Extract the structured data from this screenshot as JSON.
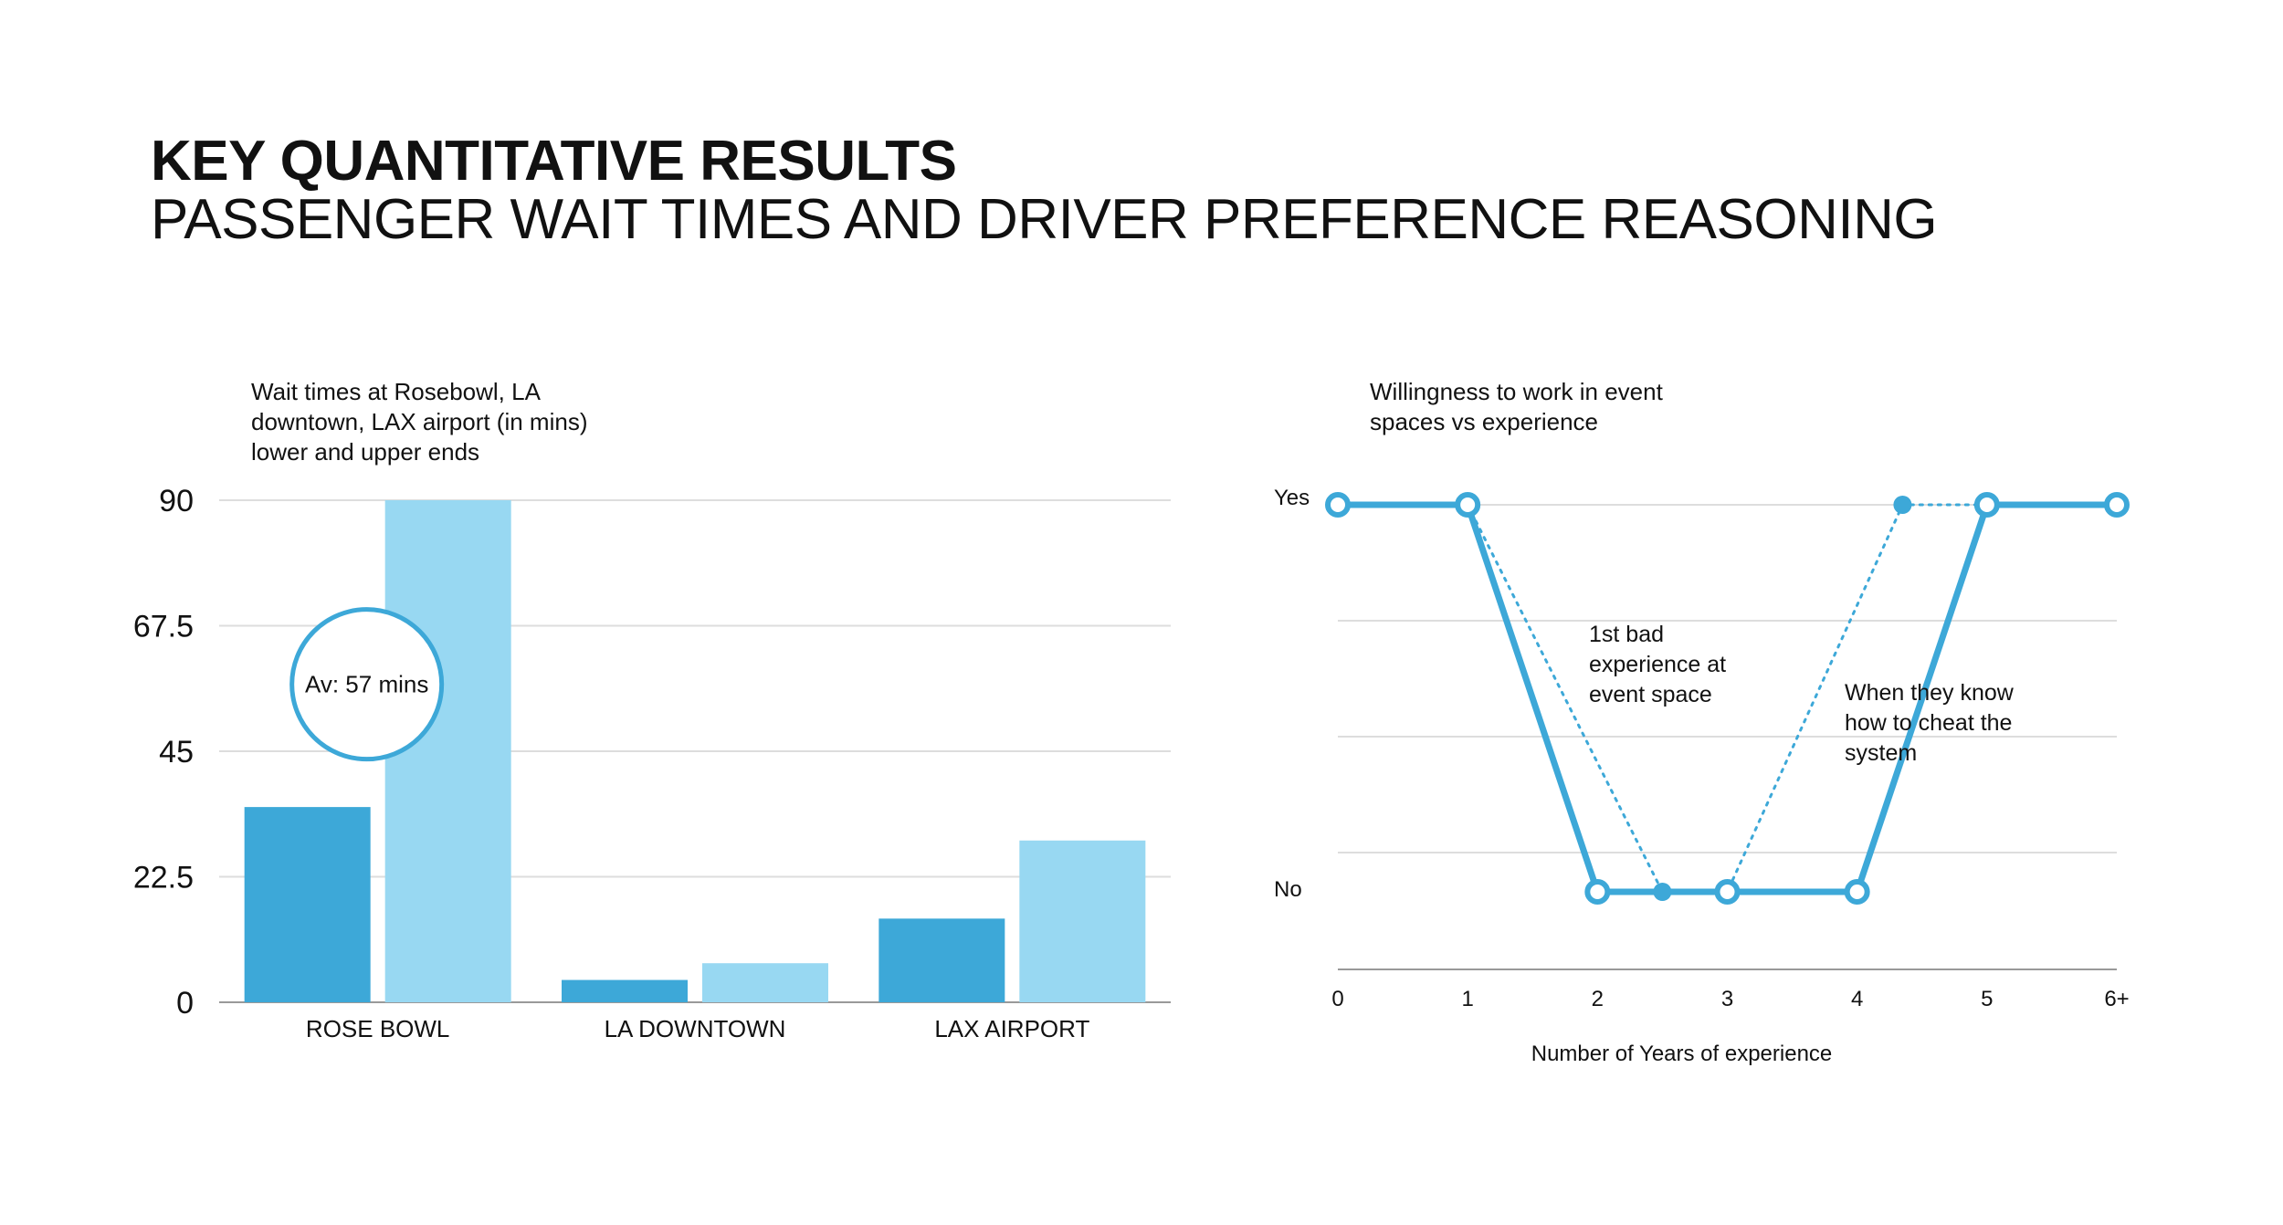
{
  "header": {
    "title": "KEY QUANTITATIVE RESULTS",
    "subtitle": "PASSENGER WAIT TIMES AND DRIVER PREFERENCE REASONING"
  },
  "colors": {
    "dark_blue": "#3da8d8",
    "light_blue": "#98d8f2",
    "line_blue": "#3da8d8",
    "grid": "#dddddd",
    "axis": "#999999"
  },
  "chart_data": [
    {
      "type": "bar",
      "title": "Wait times at Rosebowl, LA downtown, LAX airport (in mins) lower and upper ends",
      "title_lines": [
        "Wait times at Rosebowl, LA",
        "downtown, LAX airport (in mins)",
        "lower and upper ends"
      ],
      "categories": [
        "ROSE BOWL",
        "LA DOWNTOWN",
        "LAX AIRPORT"
      ],
      "series": [
        {
          "values": [
            35,
            4,
            15
          ],
          "color": "#3da8d8"
        },
        {
          "values": [
            90,
            7,
            29
          ],
          "color": "#98d8f2"
        }
      ],
      "yticks": [
        "0",
        "22.5",
        "45",
        "67.5",
        "90"
      ],
      "ylim": [
        0,
        90
      ],
      "grid": true,
      "annotation": {
        "text": "Av: 57 mins",
        "category": "ROSE BOWL",
        "y": 57
      }
    },
    {
      "type": "line",
      "title": "Willingness to work in event spaces vs experience",
      "title_lines": [
        "Willingness to work in event",
        "spaces vs experience"
      ],
      "x_labels": [
        "0",
        "1",
        "2",
        "3",
        "4",
        "5",
        "6+"
      ],
      "y_labels": [
        "No",
        "Yes"
      ],
      "xlabel": "Number of Years of experience",
      "series": [
        {
          "style": "solid",
          "x": [
            0,
            1,
            2,
            3,
            4,
            5,
            6
          ],
          "y": [
            1,
            1,
            0,
            0,
            0,
            1,
            1
          ]
        },
        {
          "style": "dotted",
          "x": [
            1,
            2.5,
            3,
            4.35,
            5
          ],
          "y": [
            1,
            0,
            0,
            1,
            1
          ]
        }
      ],
      "annotations": [
        {
          "lines": [
            "1st bad",
            "experience at",
            "event space"
          ]
        },
        {
          "lines": [
            "When they know",
            "how to cheat the",
            "system"
          ]
        }
      ],
      "grid": true
    }
  ]
}
